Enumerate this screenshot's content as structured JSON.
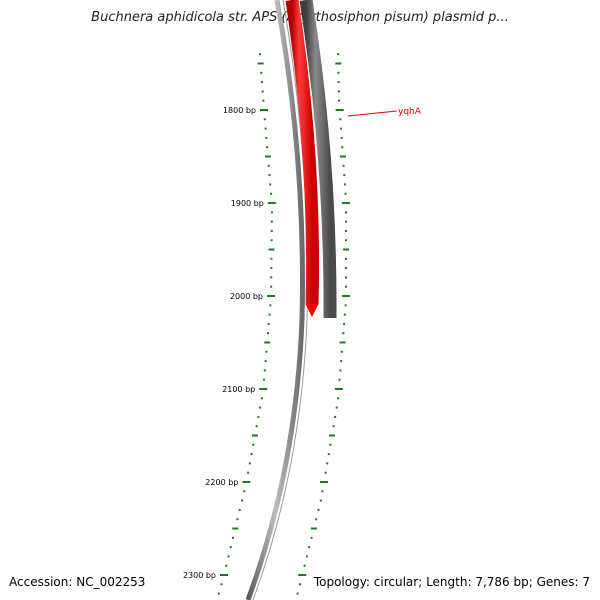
{
  "title": "Buchnera aphidicola str. APS (Acyrthosiphon pisum) plasmid p...",
  "accession": "Accession: NC_002253",
  "summary": "Topology: circular; Length: 7,786 bp; Genes: 7",
  "ticks": [
    {
      "bp": 1800,
      "label": "1800 bp"
    },
    {
      "bp": 1900,
      "label": "1900 bp"
    },
    {
      "bp": 2000,
      "label": "2000 bp"
    },
    {
      "bp": 2100,
      "label": "2100 bp"
    },
    {
      "bp": 2200,
      "label": "2200 bp"
    },
    {
      "bp": 2300,
      "label": "2300 bp"
    }
  ],
  "genes": [
    {
      "name": "yqhA",
      "color": "#e00000"
    }
  ],
  "colors": {
    "tick": "#1a7d1a",
    "backbone": "#777777",
    "forward_feature": "#ff0000",
    "reverse_feature": "#555555",
    "gene_label": "#e00000"
  }
}
